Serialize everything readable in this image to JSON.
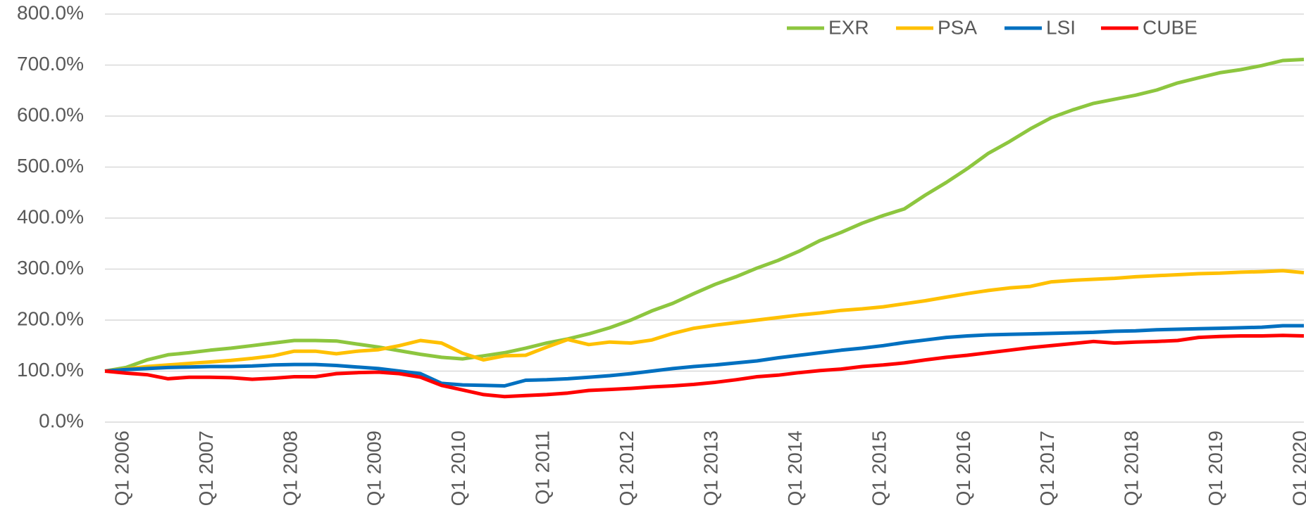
{
  "chart_data": {
    "type": "line",
    "categories": [
      "Q1 2006",
      null,
      null,
      null,
      "Q1 2007",
      null,
      null,
      null,
      "Q1 2008",
      null,
      null,
      null,
      "Q1 2009",
      null,
      null,
      null,
      "Q1 2010",
      null,
      null,
      null,
      "Q1 2011",
      null,
      null,
      null,
      "Q1 2012",
      null,
      null,
      null,
      "Q1 2013",
      null,
      null,
      null,
      "Q1 2014",
      null,
      null,
      null,
      "Q1 2015",
      null,
      null,
      null,
      "Q1 2016",
      null,
      null,
      null,
      "Q1 2017",
      null,
      null,
      null,
      "Q1 2018",
      null,
      null,
      null,
      "Q1 2019",
      null,
      null,
      null,
      "Q1 2020",
      null
    ],
    "series": [
      {
        "name": "EXR",
        "color": "#8dc63f",
        "values": [
          100,
          107,
          122,
          132,
          136,
          141,
          145,
          150,
          155,
          160,
          160,
          159,
          153,
          147,
          140,
          133,
          127,
          124,
          130,
          136,
          145,
          155,
          163,
          173,
          185,
          200,
          218,
          233,
          252,
          270,
          285,
          302,
          317,
          335,
          356,
          372,
          390,
          405,
          418,
          445,
          470,
          497,
          527,
          550,
          575,
          597,
          612,
          625,
          633,
          641,
          651,
          665,
          675,
          685,
          691,
          699,
          709,
          711
        ]
      },
      {
        "name": "PSA",
        "color": "#ffc000",
        "values": [
          100,
          104,
          109,
          112,
          115,
          118,
          121,
          125,
          130,
          139,
          139,
          134,
          139,
          142,
          150,
          160,
          155,
          135,
          122,
          130,
          131,
          147,
          162,
          152,
          157,
          155,
          161,
          174,
          184,
          190,
          195,
          200,
          205,
          210,
          214,
          219,
          222,
          226,
          232,
          238,
          245,
          252,
          258,
          263,
          266,
          275,
          278,
          280,
          282,
          285,
          287,
          289,
          291,
          292,
          294,
          295,
          297,
          293
        ]
      },
      {
        "name": "LSI",
        "color": "#0070c0",
        "values": [
          100,
          103,
          105,
          107,
          108,
          109,
          109,
          110,
          112,
          113,
          113,
          111,
          108,
          105,
          100,
          95,
          76,
          73,
          72,
          71,
          82,
          83,
          85,
          88,
          91,
          95,
          100,
          105,
          109,
          112,
          116,
          120,
          126,
          131,
          136,
          141,
          145,
          150,
          156,
          161,
          166,
          169,
          171,
          172,
          173,
          174,
          175,
          176,
          178,
          179,
          181,
          182,
          183,
          184,
          185,
          186,
          189,
          189
        ]
      },
      {
        "name": "CUBE",
        "color": "#ff0000",
        "values": [
          100,
          96,
          93,
          85,
          88,
          88,
          87,
          84,
          86,
          89,
          89,
          95,
          97,
          98,
          95,
          88,
          72,
          63,
          54,
          50,
          52,
          54,
          57,
          62,
          64,
          66,
          69,
          71,
          74,
          78,
          83,
          89,
          92,
          97,
          101,
          104,
          109,
          112,
          116,
          122,
          127,
          131,
          136,
          141,
          146,
          150,
          154,
          158,
          155,
          157,
          158,
          160,
          166,
          168,
          169,
          169,
          170,
          169
        ]
      }
    ],
    "ylim": [
      0,
      800
    ],
    "yticks": [
      {
        "value": 0,
        "label": "0.0%"
      },
      {
        "value": 100,
        "label": "100.0%"
      },
      {
        "value": 200,
        "label": "200.0%"
      },
      {
        "value": 300,
        "label": "300.0%"
      },
      {
        "value": 400,
        "label": "400.0%"
      },
      {
        "value": 500,
        "label": "500.0%"
      },
      {
        "value": 600,
        "label": "600.0%"
      },
      {
        "value": 700,
        "label": "700.0%"
      },
      {
        "value": 800,
        "label": "800.0%"
      }
    ],
    "grid": true
  }
}
